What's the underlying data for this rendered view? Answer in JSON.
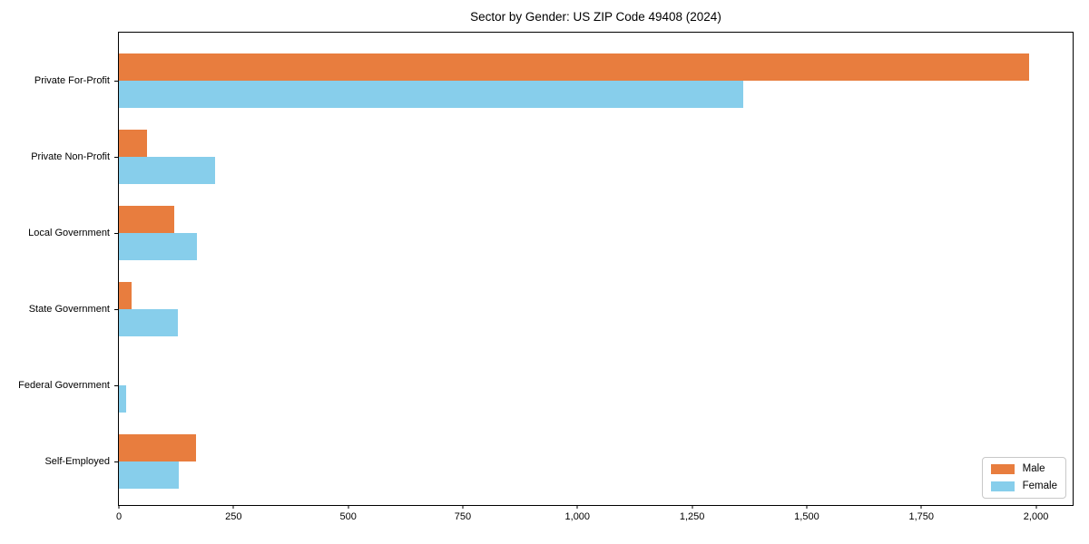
{
  "title": "Sector by Gender: US ZIP Code 49408 (2024)",
  "colors": {
    "male": "#e87d3e",
    "female": "#87ceeb",
    "spine": "#000000",
    "legend_border": "#c8c8c8",
    "background": "#ffffff"
  },
  "chart_data": {
    "type": "bar",
    "orientation": "horizontal",
    "title": "Sector by Gender: US ZIP Code 49408 (2024)",
    "xlabel": "",
    "ylabel": "",
    "grid": false,
    "legend_position": "lower right",
    "categories": [
      "Private For-Profit",
      "Private Non-Profit",
      "Local Government",
      "State Government",
      "Federal Government",
      "Self-Employed"
    ],
    "series": [
      {
        "name": "Male",
        "color": "#e87d3e",
        "values": [
          1985,
          62,
          121,
          28,
          0,
          169
        ]
      },
      {
        "name": "Female",
        "color": "#87ceeb",
        "values": [
          1362,
          210,
          171,
          128,
          16,
          130
        ]
      }
    ],
    "xlim": [
      0,
      2080
    ],
    "xticks": [
      {
        "value": 0,
        "label": "0"
      },
      {
        "value": 250,
        "label": "250"
      },
      {
        "value": 500,
        "label": "500"
      },
      {
        "value": 750,
        "label": "750"
      },
      {
        "value": 1000,
        "label": "1,000"
      },
      {
        "value": 1250,
        "label": "1,250"
      },
      {
        "value": 1500,
        "label": "1,500"
      },
      {
        "value": 1750,
        "label": "1,750"
      },
      {
        "value": 2000,
        "label": "2,000"
      }
    ]
  }
}
